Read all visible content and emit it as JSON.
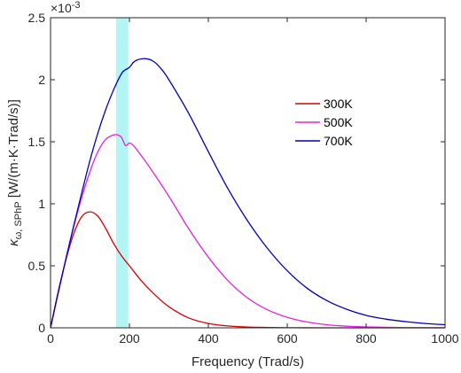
{
  "chart_data": {
    "type": "line",
    "xlabel": "Frequency (Trad/s)",
    "ylabel": {
      "kappa": "κ",
      "subscript": "ω, SPhP",
      "unit": " [W/(m·K·Trad/s)]"
    },
    "y_exponent": {
      "base": "×10",
      "power": "-3"
    },
    "xlim": [
      0,
      1000
    ],
    "ylim": [
      0,
      2.5
    ],
    "xticks": [
      0,
      200,
      400,
      600,
      800,
      1000
    ],
    "xtick_labels": [
      "0",
      "200",
      "400",
      "600",
      "800",
      "1000"
    ],
    "yticks": [
      0,
      0.5,
      1,
      1.5,
      2,
      2.5
    ],
    "ytick_labels": [
      "0",
      "0.5",
      "1",
      "1.5",
      "2",
      "2.5"
    ],
    "grid": false,
    "legend_position": "center-right",
    "highlight_band": {
      "x": [
        166,
        197
      ],
      "color": "#B3F5F5"
    },
    "series": [
      {
        "name": "300K",
        "color": "#D60000",
        "x": [
          0,
          20,
          40,
          60,
          80,
          100,
          120,
          140,
          160,
          180,
          200,
          230,
          260,
          300,
          350,
          400,
          450,
          500,
          600,
          700,
          800,
          1000
        ],
        "values": [
          0,
          0.3,
          0.56,
          0.77,
          0.9,
          0.935,
          0.9,
          0.8,
          0.68,
          0.58,
          0.5,
          0.38,
          0.28,
          0.17,
          0.08,
          0.035,
          0.015,
          0.006,
          0.001,
          0.0002,
          0,
          0
        ]
      },
      {
        "name": "500K",
        "color": "#E61FE6",
        "x": [
          0,
          20,
          40,
          60,
          80,
          100,
          120,
          140,
          160,
          170,
          180,
          190,
          200,
          210,
          220,
          250,
          300,
          350,
          400,
          450,
          500,
          550,
          600,
          650,
          700,
          750,
          800,
          900,
          1000
        ],
        "values": [
          0,
          0.29,
          0.57,
          0.83,
          1.06,
          1.26,
          1.42,
          1.52,
          1.555,
          1.555,
          1.535,
          1.47,
          1.49,
          1.47,
          1.43,
          1.3,
          1.06,
          0.8,
          0.57,
          0.38,
          0.24,
          0.145,
          0.085,
          0.047,
          0.025,
          0.013,
          0.007,
          0.002,
          0.0005
        ]
      },
      {
        "name": "700K",
        "color": "#0000B8",
        "x": [
          0,
          20,
          40,
          60,
          80,
          100,
          120,
          140,
          160,
          180,
          190,
          200,
          210,
          220,
          240,
          260,
          280,
          300,
          350,
          400,
          450,
          500,
          550,
          600,
          650,
          700,
          750,
          800,
          850,
          900,
          950,
          1000
        ],
        "values": [
          0,
          0.29,
          0.57,
          0.84,
          1.1,
          1.35,
          1.57,
          1.76,
          1.92,
          2.05,
          2.08,
          2.1,
          2.14,
          2.16,
          2.17,
          2.15,
          2.09,
          2.0,
          1.73,
          1.42,
          1.12,
          0.86,
          0.64,
          0.46,
          0.32,
          0.22,
          0.15,
          0.1,
          0.07,
          0.05,
          0.035,
          0.025
        ]
      }
    ]
  }
}
